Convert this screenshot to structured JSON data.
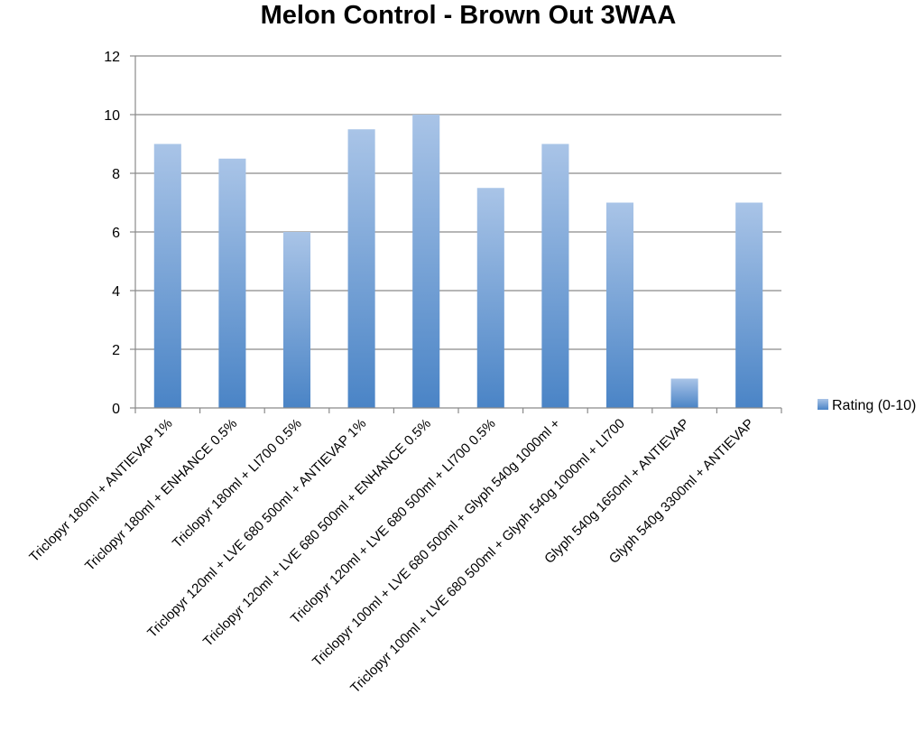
{
  "chart_data": {
    "type": "bar",
    "title": "Melon Control - Brown Out 3WAA",
    "xlabel": "",
    "ylabel": "",
    "ylim": [
      0,
      12
    ],
    "yticks": [
      0,
      2,
      4,
      6,
      8,
      10,
      12
    ],
    "grid": true,
    "legend_position": "right",
    "categories": [
      "Triclopyr 180ml + ANTIEVAP 1%",
      "Triclopyr 180ml + ENHANCE 0.5%",
      "Triclopyr 180ml + LI700 0.5%",
      "Triclopyr 120ml + LVE 680 500ml + ANTIEVAP 1%",
      "Triclopyr 120ml + LVE 680 500ml + ENHANCE 0.5%",
      "Triclopyr 120ml + LVE 680 500ml + LI700 0.5%",
      "Triclopyr 100ml + LVE 680 500ml + Glyph 540g 1000ml +",
      "Triclopyr 100ml + LVE 680 500ml + Glyph 540g 1000ml + LI700",
      "Glyph 540g 1650ml + ANTIEVAP",
      "Glyph 540g 3300ml + ANTIEVAP"
    ],
    "series": [
      {
        "name": "Rating (0-10)",
        "values": [
          9,
          8.5,
          6,
          9.5,
          10,
          7.5,
          9,
          7,
          1,
          7
        ],
        "color": "#4a86c8"
      }
    ]
  }
}
